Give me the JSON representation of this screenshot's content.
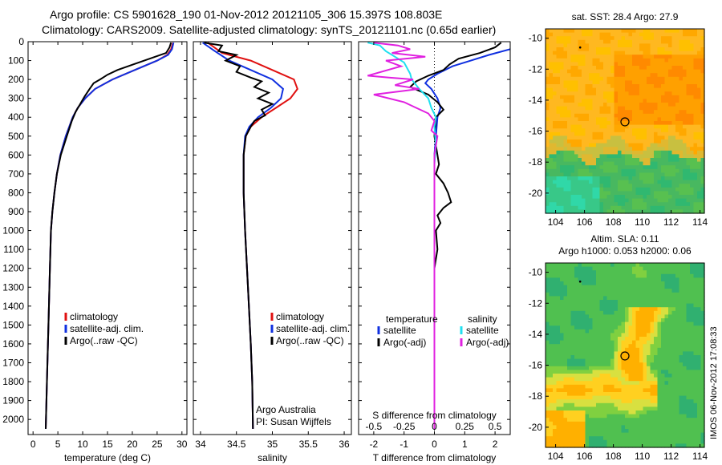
{
  "title_line1": "Argo profile: CS 5901628_190 01-Nov-2012 20121105_306 15.397S 108.803E",
  "title_line2": "Climatology: CARS2009. Satellite-adjusted climatology: synTS_20121101.nc (0.65d earlier)",
  "colors": {
    "climatology": "#e01010",
    "satellite": "#1030e0",
    "argo": "#000000",
    "cyan": "#20e0f0",
    "magenta": "#e020e0"
  },
  "chart_data": [
    {
      "type": "line",
      "xlabel": "temperature (deg C)",
      "xlim": [
        -1,
        31
      ],
      "xticks": [
        0,
        5,
        10,
        15,
        20,
        25,
        30
      ],
      "ylim": [
        0,
        2080
      ],
      "yticks": [
        0,
        100,
        200,
        300,
        400,
        500,
        600,
        700,
        800,
        900,
        1000,
        1100,
        1200,
        1300,
        1400,
        1500,
        1600,
        1700,
        1800,
        1900,
        2000
      ],
      "legend": [
        "climatology",
        "satellite-adj. clim.",
        "Argo(..raw -QC)"
      ],
      "series": [
        {
          "name": "climatology",
          "color": "#e01010",
          "points": [
            [
              28.2,
              5
            ],
            [
              27.8,
              40
            ],
            [
              27,
              70
            ],
            [
              25,
              100
            ],
            [
              20.5,
              150
            ],
            [
              16,
              200
            ],
            [
              12.5,
              250
            ],
            [
              10.5,
              300
            ],
            [
              9,
              350
            ],
            [
              8,
              400
            ],
            [
              6.6,
              500
            ],
            [
              5.5,
              600
            ],
            [
              4.8,
              700
            ],
            [
              4.3,
              800
            ],
            [
              3.9,
              900
            ],
            [
              3.6,
              1000
            ],
            [
              3.4,
              1200
            ],
            [
              3.1,
              1500
            ],
            [
              2.8,
              1800
            ],
            [
              2.55,
              2050
            ]
          ]
        },
        {
          "name": "satellite-adj. clim.",
          "color": "#1030e0",
          "points": [
            [
              28.3,
              5
            ],
            [
              28,
              40
            ],
            [
              27.2,
              70
            ],
            [
              25,
              100
            ],
            [
              20.5,
              150
            ],
            [
              16,
              200
            ],
            [
              12.5,
              250
            ],
            [
              10.5,
              300
            ],
            [
              9,
              350
            ],
            [
              8,
              400
            ],
            [
              6.6,
              500
            ],
            [
              5.5,
              600
            ],
            [
              4.8,
              700
            ],
            [
              4.3,
              800
            ],
            [
              3.9,
              900
            ],
            [
              3.6,
              1000
            ],
            [
              3.4,
              1200
            ],
            [
              3.1,
              1500
            ],
            [
              2.8,
              1800
            ],
            [
              2.55,
              2050
            ]
          ]
        },
        {
          "name": "Argo(..raw -QC)",
          "color": "#000000",
          "points": [
            [
              27.8,
              5
            ],
            [
              27.5,
              30
            ],
            [
              26.8,
              60
            ],
            [
              23.5,
              90
            ],
            [
              20.2,
              120
            ],
            [
              17,
              150
            ],
            [
              15,
              175
            ],
            [
              13.5,
              200
            ],
            [
              12.2,
              220
            ],
            [
              11.4,
              250
            ],
            [
              10.4,
              290
            ],
            [
              9.5,
              330
            ],
            [
              8.6,
              370
            ],
            [
              7.8,
              420
            ],
            [
              6.8,
              500
            ],
            [
              5.6,
              600
            ],
            [
              4.8,
              700
            ],
            [
              4.3,
              800
            ],
            [
              3.9,
              900
            ],
            [
              3.6,
              1000
            ],
            [
              3.4,
              1200
            ],
            [
              3.1,
              1500
            ],
            [
              2.8,
              1800
            ],
            [
              2.55,
              2050
            ]
          ]
        }
      ]
    },
    {
      "type": "line",
      "xlabel": "salinity",
      "xlim": [
        33.9,
        36.1
      ],
      "xticks": [
        34,
        34.5,
        35,
        35.5,
        36
      ],
      "ylim": [
        0,
        2080
      ],
      "legend": [
        "climatology",
        "satellite-adj. clim.",
        "Argo(..raw -QC)"
      ],
      "annotation": [
        "Argo Australia",
        "PI: Susan Wijffels"
      ],
      "series": [
        {
          "name": "climatology",
          "color": "#e01010",
          "points": [
            [
              34.1,
              5
            ],
            [
              34.3,
              60
            ],
            [
              34.7,
              100
            ],
            [
              35.0,
              150
            ],
            [
              35.3,
              200
            ],
            [
              35.35,
              250
            ],
            [
              35.25,
              300
            ],
            [
              35.05,
              350
            ],
            [
              34.85,
              400
            ],
            [
              34.7,
              450
            ],
            [
              34.63,
              500
            ],
            [
              34.6,
              600
            ],
            [
              34.6,
              800
            ],
            [
              34.62,
              1000
            ],
            [
              34.66,
              1300
            ],
            [
              34.7,
              1600
            ],
            [
              34.72,
              1800
            ],
            [
              34.73,
              2050
            ]
          ]
        },
        {
          "name": "satellite-adj. clim.",
          "color": "#1030e0",
          "points": [
            [
              34.03,
              5
            ],
            [
              34.2,
              50
            ],
            [
              34.4,
              100
            ],
            [
              34.7,
              150
            ],
            [
              35.0,
              200
            ],
            [
              35.15,
              250
            ],
            [
              35.12,
              300
            ],
            [
              34.98,
              350
            ],
            [
              34.8,
              400
            ],
            [
              34.68,
              450
            ],
            [
              34.62,
              500
            ],
            [
              34.6,
              600
            ],
            [
              34.6,
              800
            ],
            [
              34.62,
              1000
            ],
            [
              34.66,
              1300
            ],
            [
              34.7,
              1600
            ],
            [
              34.72,
              1800
            ],
            [
              34.73,
              2050
            ]
          ]
        },
        {
          "name": "Argo(..raw -QC)",
          "color": "#000000",
          "points": [
            [
              34.05,
              5
            ],
            [
              34.3,
              20
            ],
            [
              34.25,
              50
            ],
            [
              34.5,
              70
            ],
            [
              34.35,
              100
            ],
            [
              34.55,
              130
            ],
            [
              34.5,
              160
            ],
            [
              34.7,
              190
            ],
            [
              34.85,
              210
            ],
            [
              34.75,
              240
            ],
            [
              34.95,
              270
            ],
            [
              34.8,
              300
            ],
            [
              35.0,
              330
            ],
            [
              34.85,
              360
            ],
            [
              34.9,
              390
            ],
            [
              34.75,
              420
            ],
            [
              34.7,
              450
            ],
            [
              34.63,
              500
            ],
            [
              34.6,
              600
            ],
            [
              34.6,
              800
            ],
            [
              34.62,
              1000
            ],
            [
              34.66,
              1300
            ],
            [
              34.7,
              1600
            ],
            [
              34.72,
              1800
            ],
            [
              34.73,
              2050
            ]
          ]
        }
      ]
    },
    {
      "type": "line",
      "xlabel": "T difference from climatology",
      "xlim": [
        -2.5,
        2.5
      ],
      "xticks": [
        -2,
        -1,
        0,
        1,
        2
      ],
      "top_xlabel": "S difference from climatology",
      "top_xticks": [
        "-0.5",
        "-0.25",
        "0",
        "0.25",
        "0.5"
      ],
      "top_xticks_at_T": [
        -2,
        -1,
        0,
        1,
        2
      ],
      "ylim": [
        0,
        2080
      ],
      "legend": [
        "temperature",
        "satellite",
        "Argo(-adj)",
        "salinity",
        "satellite",
        "Argo(-adj)"
      ],
      "series": [
        {
          "name": "satellite",
          "color": "#1030e0",
          "points": [
            [
              2.6,
              5
            ],
            [
              2.5,
              40
            ],
            [
              1.8,
              70
            ],
            [
              1.2,
              100
            ],
            [
              0.6,
              130
            ],
            [
              0.1,
              170
            ],
            [
              -0.2,
              200
            ],
            [
              -0.3,
              220
            ],
            [
              -0.1,
              250
            ],
            [
              0.1,
              300
            ],
            [
              0.2,
              350
            ],
            [
              0.1,
              400
            ],
            [
              0.05,
              500
            ],
            [
              0,
              600
            ],
            [
              0,
              2050
            ]
          ]
        },
        {
          "name": "Argo(-adj)",
          "color": "#000000",
          "points": [
            [
              2.2,
              5
            ],
            [
              2.0,
              30
            ],
            [
              1.5,
              60
            ],
            [
              0.8,
              90
            ],
            [
              0.5,
              120
            ],
            [
              0.3,
              150
            ],
            [
              -0.2,
              180
            ],
            [
              -0.6,
              210
            ],
            [
              -0.8,
              240
            ],
            [
              -0.5,
              260
            ],
            [
              -0.2,
              280
            ],
            [
              0.1,
              320
            ],
            [
              0.3,
              360
            ],
            [
              0.05,
              400
            ],
            [
              0.0,
              500
            ],
            [
              0.1,
              600
            ],
            [
              0.15,
              650
            ],
            [
              0.05,
              700
            ],
            [
              0.3,
              750
            ],
            [
              0.45,
              800
            ],
            [
              0.55,
              850
            ],
            [
              0.3,
              880
            ],
            [
              0.1,
              920
            ],
            [
              0.2,
              960
            ],
            [
              0.05,
              1000
            ],
            [
              0.1,
              1100
            ],
            [
              0,
              1200
            ],
            [
              0,
              2050
            ]
          ]
        },
        {
          "name": "salinity satellite",
          "color": "#20e0f0",
          "points": [
            [
              -2.2,
              5
            ],
            [
              -1.8,
              20
            ],
            [
              -1.6,
              50
            ],
            [
              -1.3,
              80
            ],
            [
              -1.0,
              110
            ],
            [
              -0.9,
              140
            ],
            [
              -0.8,
              170
            ],
            [
              -0.75,
              200
            ],
            [
              -0.5,
              250
            ],
            [
              -0.2,
              300
            ],
            [
              -0.1,
              350
            ],
            [
              0.05,
              400
            ],
            [
              0.0,
              450
            ],
            [
              0.05,
              550
            ],
            [
              0,
              650
            ],
            [
              0,
              2050
            ]
          ]
        },
        {
          "name": "salinity Argo(-adj)",
          "color": "#e020e0",
          "points": [
            [
              -2.0,
              5
            ],
            [
              -1.2,
              20
            ],
            [
              -0.8,
              40
            ],
            [
              -1.4,
              60
            ],
            [
              -0.3,
              80
            ],
            [
              -1.6,
              100
            ],
            [
              -1.1,
              130
            ],
            [
              -2.2,
              180
            ],
            [
              -1.5,
              190
            ],
            [
              -0.7,
              200
            ],
            [
              -1.3,
              230
            ],
            [
              -0.5,
              250
            ],
            [
              -2.0,
              280
            ],
            [
              -1.0,
              320
            ],
            [
              -0.6,
              350
            ],
            [
              -0.2,
              380
            ],
            [
              0.0,
              420
            ],
            [
              -0.1,
              470
            ],
            [
              0.1,
              500
            ],
            [
              0,
              600
            ],
            [
              0,
              2050
            ]
          ]
        }
      ]
    }
  ],
  "maps": [
    {
      "title": "sat. SST: 28.4 Argo: 27.9",
      "xticks": [
        104,
        106,
        108,
        110,
        112,
        114
      ],
      "yticks": [
        -10,
        -12,
        -14,
        -16,
        -18,
        -20
      ],
      "argo_lon": 108.8,
      "argo_lat": -15.4
    },
    {
      "title_line1": "Altim. SLA: 0.11",
      "title_line2": "Argo h1000: 0.053 h2000: 0.06",
      "xticks": [
        104,
        106,
        108,
        110,
        112,
        114
      ],
      "yticks": [
        -10,
        -12,
        -14,
        -16,
        -18,
        -20
      ],
      "argo_lon": 108.8,
      "argo_lat": -15.4
    }
  ],
  "footer_stamp": "IMOS 06-Nov-2012 17:08:33"
}
